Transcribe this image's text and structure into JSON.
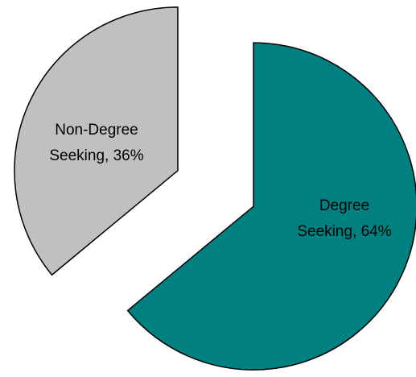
{
  "chart_data": {
    "type": "pie",
    "values": [
      64,
      36
    ],
    "value_labels": [
      "Degree Seeking, 64%",
      "Non-Degree Seeking, 36%"
    ],
    "colors": [
      "#008080",
      "#c0c0c0"
    ],
    "exploded": true
  }
}
